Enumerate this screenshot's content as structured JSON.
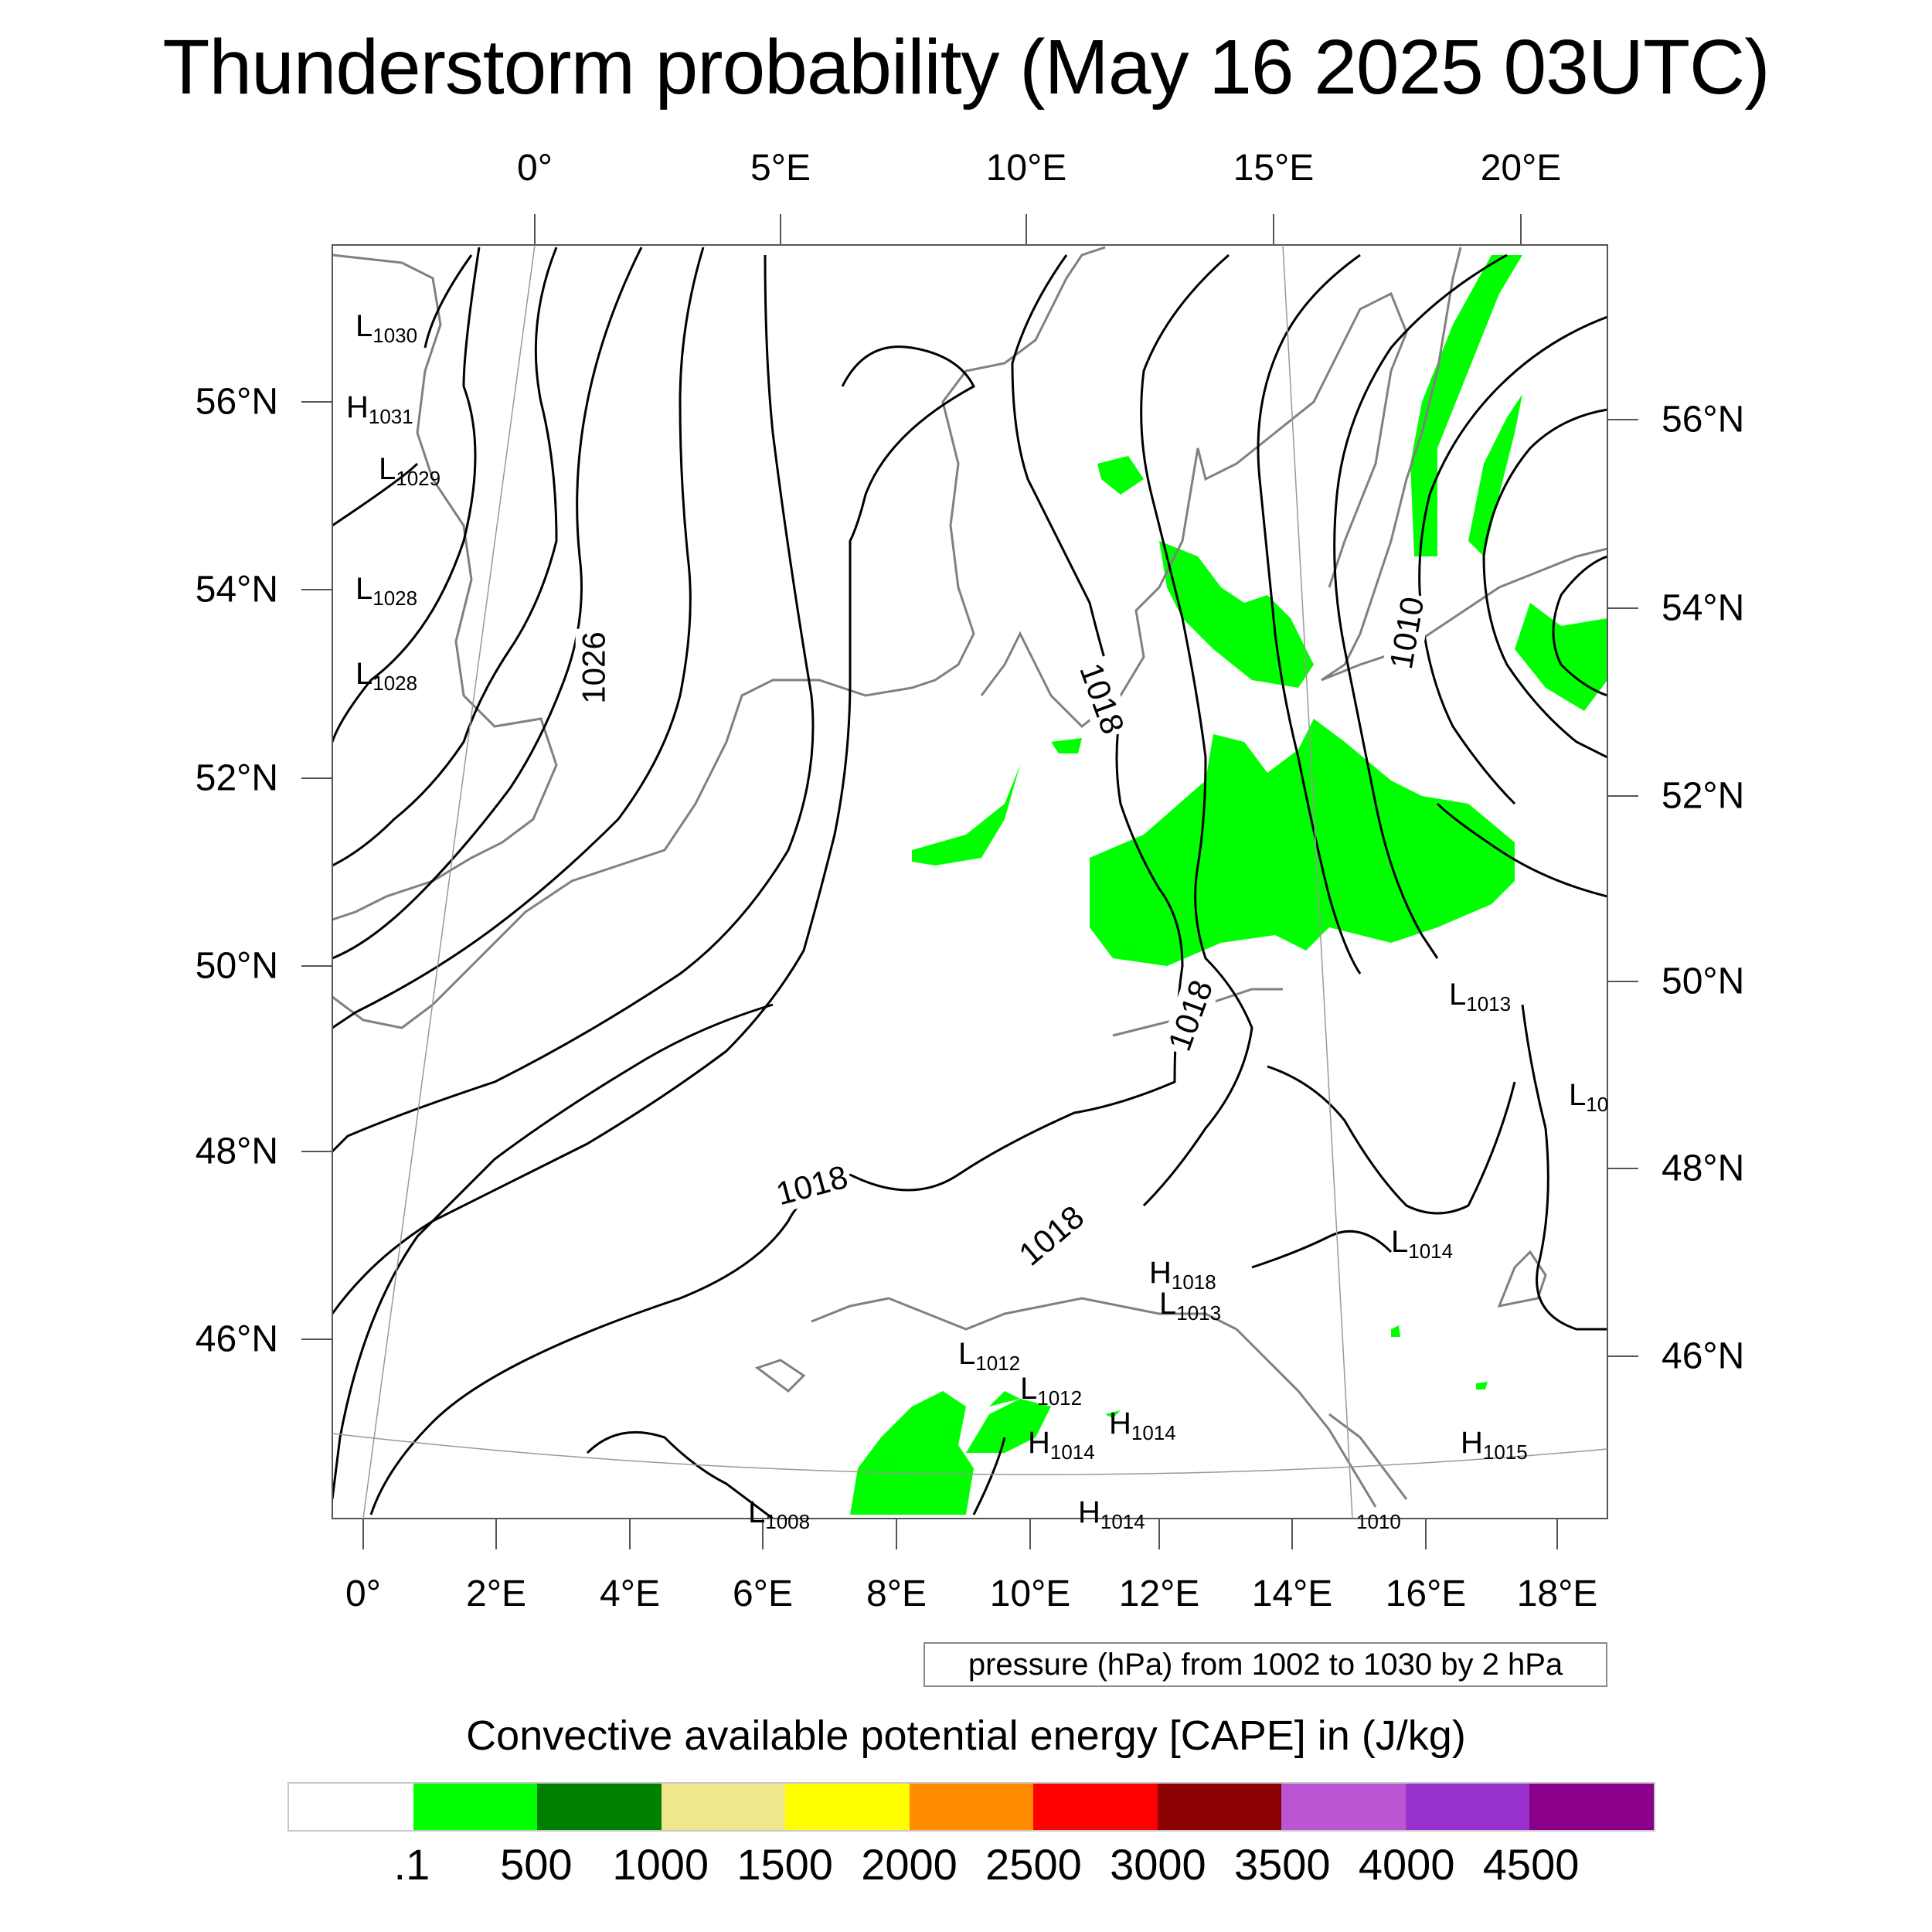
{
  "title": "Thunderstorm probability (May 16 2025 03UTC)",
  "axes": {
    "top_lon": [
      "0°",
      "5°E",
      "10°E",
      "15°E",
      "20°E"
    ],
    "bottom_lon": [
      "0°",
      "2°E",
      "4°E",
      "6°E",
      "8°E",
      "10°E",
      "12°E",
      "14°E",
      "16°E",
      "18°E"
    ],
    "left_lat": [
      "56°N",
      "54°N",
      "52°N",
      "50°N",
      "48°N",
      "46°N"
    ],
    "right_lat": [
      "56°N",
      "54°N",
      "52°N",
      "50°N",
      "48°N",
      "46°N"
    ]
  },
  "pressure_info": "pressure (hPa) from 1002 to 1030 by 2 hPa",
  "pressure_labels": {
    "contour": [
      "1026",
      "1018",
      "1018",
      "1018",
      "1018",
      "1010"
    ],
    "centers": [
      {
        "t": "L",
        "v": "1030"
      },
      {
        "t": "H",
        "v": "1031"
      },
      {
        "t": "L",
        "v": "1029"
      },
      {
        "t": "L",
        "v": "1028"
      },
      {
        "t": "L",
        "v": "1028"
      },
      {
        "t": "L",
        "v": "1013"
      },
      {
        "t": "L",
        "v": "10"
      },
      {
        "t": "L",
        "v": "1014"
      },
      {
        "t": "H",
        "v": "1018"
      },
      {
        "t": "L",
        "v": "1013"
      },
      {
        "t": "L",
        "v": "1012"
      },
      {
        "t": "L",
        "v": "1012"
      },
      {
        "t": "H",
        "v": "1014"
      },
      {
        "t": "H",
        "v": "1014"
      },
      {
        "t": "H",
        "v": "1015"
      },
      {
        "t": "L",
        "v": "1008"
      },
      {
        "t": "H",
        "v": "1014"
      },
      {
        "t": "",
        "v": "1010"
      }
    ]
  },
  "colorbar": {
    "title": "Convective available potential energy [CAPE] in (J/kg)",
    "colors": [
      "#ffffff",
      "#00ff00",
      "#008000",
      "#f0e68c",
      "#ffff00",
      "#ff8c00",
      "#ff0000",
      "#8b0000",
      "#ba55d3",
      "#9932cc",
      "#8b008b"
    ],
    "labels": [
      ".1",
      "500",
      "1000",
      "1500",
      "2000",
      "2500",
      "3000",
      "3500",
      "4000",
      "4500"
    ]
  },
  "colors": {
    "cape_fill": "#00ff00",
    "isobar": "#000000",
    "coast": "#808080"
  }
}
